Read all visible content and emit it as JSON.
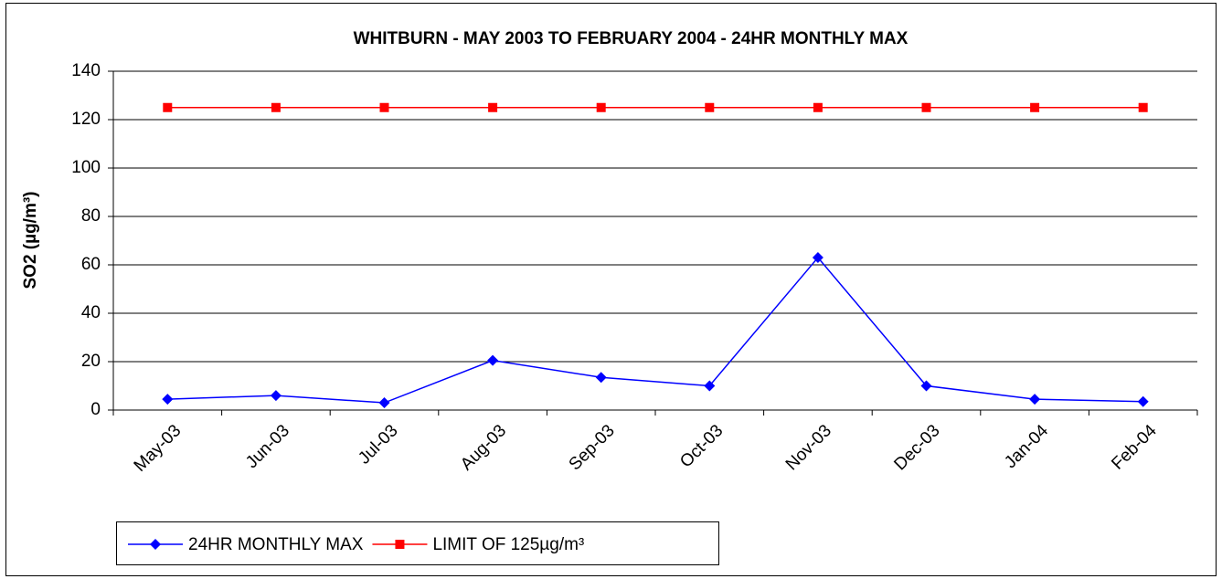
{
  "chart_data": {
    "type": "line",
    "title": "WHITBURN - MAY 2003 TO FEBRUARY 2004 - 24HR MONTHLY MAX",
    "y_label": "SO2 (µg/m³)",
    "categories": [
      "May-03",
      "Jun-03",
      "Jul-03",
      "Aug-03",
      "Sep-03",
      "Oct-03",
      "Nov-03",
      "Dec-03",
      "Jan-04",
      "Feb-04"
    ],
    "series": [
      {
        "name": "24HR MONTHLY MAX",
        "color": "#0000ff",
        "marker": "diamond",
        "values": [
          4.5,
          6,
          3,
          20.5,
          13.5,
          10,
          63,
          10,
          4.5,
          3.5
        ]
      },
      {
        "name": "LIMIT OF 125µg/m³",
        "color": "#ff0000",
        "marker": "square",
        "values": [
          125,
          125,
          125,
          125,
          125,
          125,
          125,
          125,
          125,
          125
        ]
      }
    ],
    "ylim": [
      0,
      140
    ],
    "yticks": [
      0,
      20,
      40,
      60,
      80,
      100,
      120,
      140
    ],
    "grid": true,
    "legend": "bottom"
  }
}
